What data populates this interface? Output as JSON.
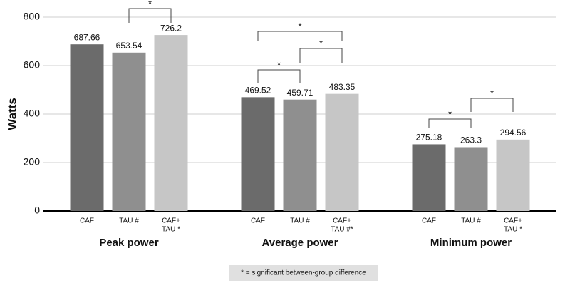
{
  "chart_data": {
    "type": "bar",
    "ylabel": "Watts",
    "ylim": [
      0,
      800
    ],
    "yticks": [
      0,
      200,
      400,
      600,
      800
    ],
    "grid": true,
    "groups": [
      {
        "name": "Peak power",
        "bars": [
          {
            "label": [
              "CAF"
            ],
            "value": 687.66,
            "color": "#6b6b6b"
          },
          {
            "label": [
              "TAU #"
            ],
            "value": 653.54,
            "color": "#8f8f8f"
          },
          {
            "label": [
              "CAF+",
              "TAU *"
            ],
            "value": 726.2,
            "color": "#c6c6c6"
          }
        ]
      },
      {
        "name": "Average power",
        "bars": [
          {
            "label": [
              "CAF"
            ],
            "value": 469.52,
            "color": "#6b6b6b"
          },
          {
            "label": [
              "TAU #"
            ],
            "value": 459.71,
            "color": "#8f8f8f"
          },
          {
            "label": [
              "CAF+",
              "TAU #*"
            ],
            "value": 483.35,
            "color": "#c6c6c6"
          }
        ]
      },
      {
        "name": "Minimum power",
        "bars": [
          {
            "label": [
              "CAF"
            ],
            "value": 275.18,
            "color": "#6b6b6b"
          },
          {
            "label": [
              "TAU #"
            ],
            "value": 263.3,
            "color": "#8f8f8f"
          },
          {
            "label": [
              "CAF+",
              "TAU *"
            ],
            "value": 294.56,
            "color": "#c6c6c6"
          }
        ]
      }
    ],
    "brackets": [
      "*",
      "*",
      "*",
      "*",
      "*",
      "*"
    ],
    "note": "* = significant between-group difference"
  }
}
